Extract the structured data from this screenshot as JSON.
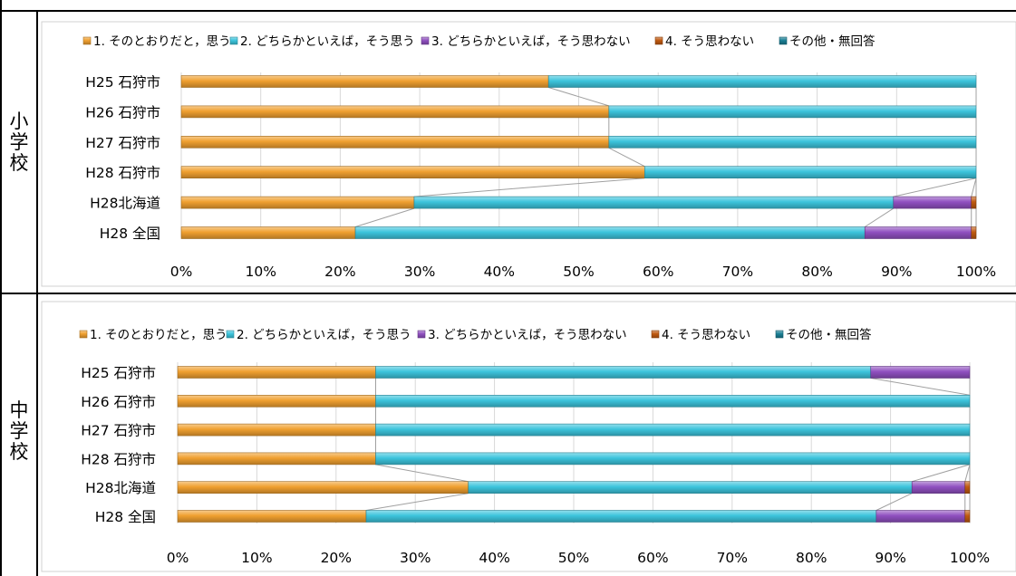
{
  "sections": [
    {
      "label_chars": [
        "小",
        "学",
        "校"
      ]
    },
    {
      "label_chars": [
        "中",
        "学",
        "校"
      ]
    }
  ],
  "colors": {
    "s1": "#f0a030",
    "s2": "#3cc4dc",
    "s3": "#9050c0",
    "s4": "#c05a10",
    "s5": "#1a7f95",
    "connector": "#a0a0a0",
    "grid": "#d9d9d9",
    "panel_border": "#d0d0d0"
  },
  "chart_data": [
    {
      "type": "bar",
      "orientation": "horizontal",
      "stacked": "percent",
      "section": "小学校",
      "categories": [
        "H25 石狩市",
        "H26 石狩市",
        "H27 石狩市",
        "H28 石狩市",
        "H28北海道",
        "H28 全国"
      ],
      "xlim": [
        0,
        100
      ],
      "xticks": [
        "0%",
        "10%",
        "20%",
        "30%",
        "40%",
        "50%",
        "60%",
        "70%",
        "80%",
        "90%",
        "100%"
      ],
      "legend_position": "top",
      "grid": true,
      "series": [
        {
          "name": "1. そのとおりだと，思う",
          "values": [
            46.2,
            53.8,
            53.8,
            58.3,
            29.3,
            21.9
          ]
        },
        {
          "name": "2. どちらかといえば，そう思う",
          "values": [
            53.8,
            46.2,
            46.2,
            41.7,
            60.3,
            64.1
          ]
        },
        {
          "name": "3. どちらかといえば，そう思わない",
          "values": [
            0,
            0,
            0,
            0,
            9.8,
            13.4
          ]
        },
        {
          "name": "4. そう思わない",
          "values": [
            0,
            0,
            0,
            0,
            0.6,
            0.6
          ]
        },
        {
          "name": "その他・無回答",
          "values": [
            0,
            0,
            0,
            0,
            0,
            0
          ]
        }
      ]
    },
    {
      "type": "bar",
      "orientation": "horizontal",
      "stacked": "percent",
      "section": "中学校",
      "categories": [
        "H25 石狩市",
        "H26 石狩市",
        "H27 石狩市",
        "H28 石狩市",
        "H28北海道",
        "H28 全国"
      ],
      "xlim": [
        0,
        100
      ],
      "xticks": [
        "0%",
        "10%",
        "20%",
        "30%",
        "40%",
        "50%",
        "60%",
        "70%",
        "80%",
        "90%",
        "100%"
      ],
      "legend_position": "top",
      "grid": true,
      "series": [
        {
          "name": "1. そのとおりだと，思う",
          "values": [
            25.0,
            25.0,
            25.0,
            25.0,
            36.7,
            23.8
          ]
        },
        {
          "name": "2. どちらかといえば，そう思う",
          "values": [
            62.5,
            75.0,
            75.0,
            75.0,
            56.0,
            64.4
          ]
        },
        {
          "name": "3. どちらかといえば，そう思わない",
          "values": [
            12.5,
            0,
            0,
            0,
            6.7,
            11.2
          ]
        },
        {
          "name": "4. そう思わない",
          "values": [
            0,
            0,
            0,
            0,
            0.6,
            0.6
          ]
        },
        {
          "name": "その他・無回答",
          "values": [
            0,
            0,
            0,
            0,
            0,
            0
          ]
        }
      ]
    }
  ]
}
